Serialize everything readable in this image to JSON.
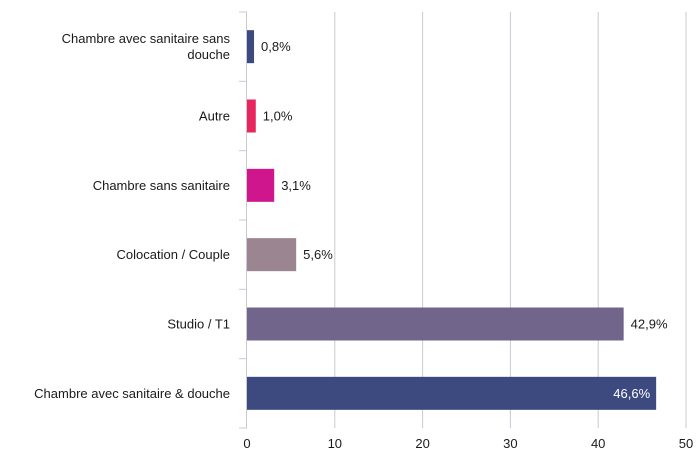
{
  "chart_data": {
    "type": "bar",
    "orientation": "horizontal",
    "categories": [
      [
        "Chambre avec sanitaire sans",
        "douche"
      ],
      [
        "Autre"
      ],
      [
        "Chambre sans sanitaire"
      ],
      [
        "Colocation / Couple"
      ],
      [
        "Studio / T1"
      ],
      [
        "Chambre avec sanitaire & douche"
      ]
    ],
    "values": [
      0.8,
      1.0,
      3.1,
      5.6,
      42.9,
      46.6
    ],
    "value_labels": [
      "0,8%",
      "1,0%",
      "3,1%",
      "5,6%",
      "42,9%",
      "46,6%"
    ],
    "colors": [
      "#3d4a80",
      "#e8265e",
      "#d0168d",
      "#9a8590",
      "#72658c",
      "#3d4a80"
    ],
    "xlim": [
      0,
      50
    ],
    "xticks": [
      0,
      10,
      20,
      30,
      40,
      50
    ],
    "grid": "vertical",
    "legend": "none",
    "title": "",
    "xlabel": "",
    "ylabel": ""
  }
}
